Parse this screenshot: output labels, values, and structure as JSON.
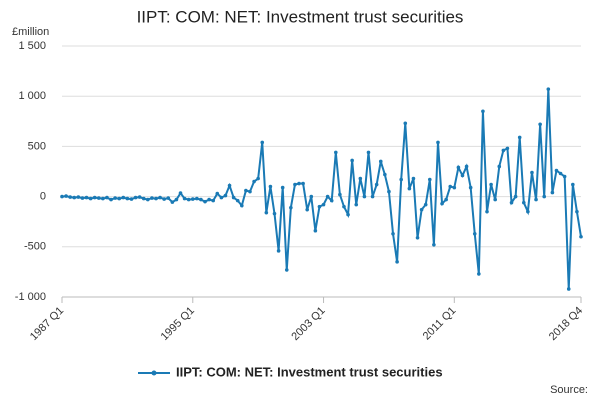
{
  "chart_data": {
    "type": "line",
    "title": "IIPT: COM: NET: Investment trust securities",
    "y_unit": "£million",
    "source": "Source:",
    "categories": [
      "1987 Q1",
      null,
      null,
      null,
      null,
      null,
      null,
      null,
      null,
      null,
      null,
      null,
      null,
      null,
      null,
      null,
      null,
      null,
      null,
      null,
      null,
      null,
      null,
      null,
      null,
      null,
      null,
      null,
      null,
      null,
      null,
      null,
      "1995 Q1",
      null,
      null,
      null,
      null,
      null,
      null,
      null,
      null,
      null,
      null,
      null,
      null,
      null,
      null,
      null,
      null,
      null,
      null,
      null,
      null,
      null,
      null,
      null,
      null,
      null,
      null,
      null,
      null,
      null,
      null,
      null,
      "2003 Q1",
      null,
      null,
      null,
      null,
      null,
      null,
      null,
      null,
      null,
      null,
      null,
      null,
      null,
      null,
      null,
      null,
      null,
      null,
      null,
      null,
      null,
      null,
      null,
      null,
      null,
      null,
      null,
      null,
      null,
      null,
      null,
      "2011 Q1",
      null,
      null,
      null,
      null,
      null,
      null,
      null,
      null,
      null,
      null,
      null,
      null,
      null,
      null,
      null,
      null,
      null,
      null,
      null,
      null,
      null,
      null,
      null,
      null,
      null,
      null,
      null,
      null,
      null,
      null,
      "2018 Q4"
    ],
    "series": [
      {
        "name": "IIPT: COM: NET: Investment trust securities",
        "color": "#1a7ab5",
        "values": [
          0,
          5,
          -5,
          -10,
          -5,
          -15,
          -10,
          -20,
          -10,
          -15,
          -20,
          -10,
          -30,
          -15,
          -20,
          -10,
          -20,
          -25,
          -10,
          -5,
          -20,
          -30,
          -15,
          -20,
          -10,
          -25,
          -15,
          -55,
          -30,
          35,
          -20,
          -30,
          -25,
          -20,
          -30,
          -50,
          -30,
          -40,
          30,
          -10,
          10,
          110,
          -10,
          -40,
          -90,
          60,
          50,
          150,
          180,
          540,
          -160,
          100,
          -170,
          -540,
          90,
          -730,
          -110,
          120,
          130,
          130,
          -130,
          0,
          -340,
          -100,
          -80,
          0,
          -40,
          440,
          20,
          -100,
          -180,
          360,
          -80,
          180,
          0,
          440,
          0,
          120,
          350,
          220,
          50,
          -370,
          -650,
          170,
          730,
          80,
          180,
          -410,
          -130,
          -80,
          170,
          -480,
          540,
          -70,
          -30,
          100,
          90,
          290,
          210,
          300,
          90,
          -370,
          -770,
          850,
          -150,
          120,
          -30,
          300,
          460,
          480,
          -60,
          0,
          590,
          -60,
          -150,
          240,
          -30,
          720,
          0,
          1070,
          40,
          260,
          230,
          200,
          -920,
          120,
          -150,
          -400
        ]
      }
    ],
    "ylim": [
      -1000,
      1500
    ],
    "yticks": [
      {
        "value": -1000,
        "label": "-1 000"
      },
      -500,
      0,
      500,
      {
        "value": 1000,
        "label": "1 000"
      },
      {
        "value": 1500,
        "label": "1 500"
      }
    ],
    "grid": true
  }
}
